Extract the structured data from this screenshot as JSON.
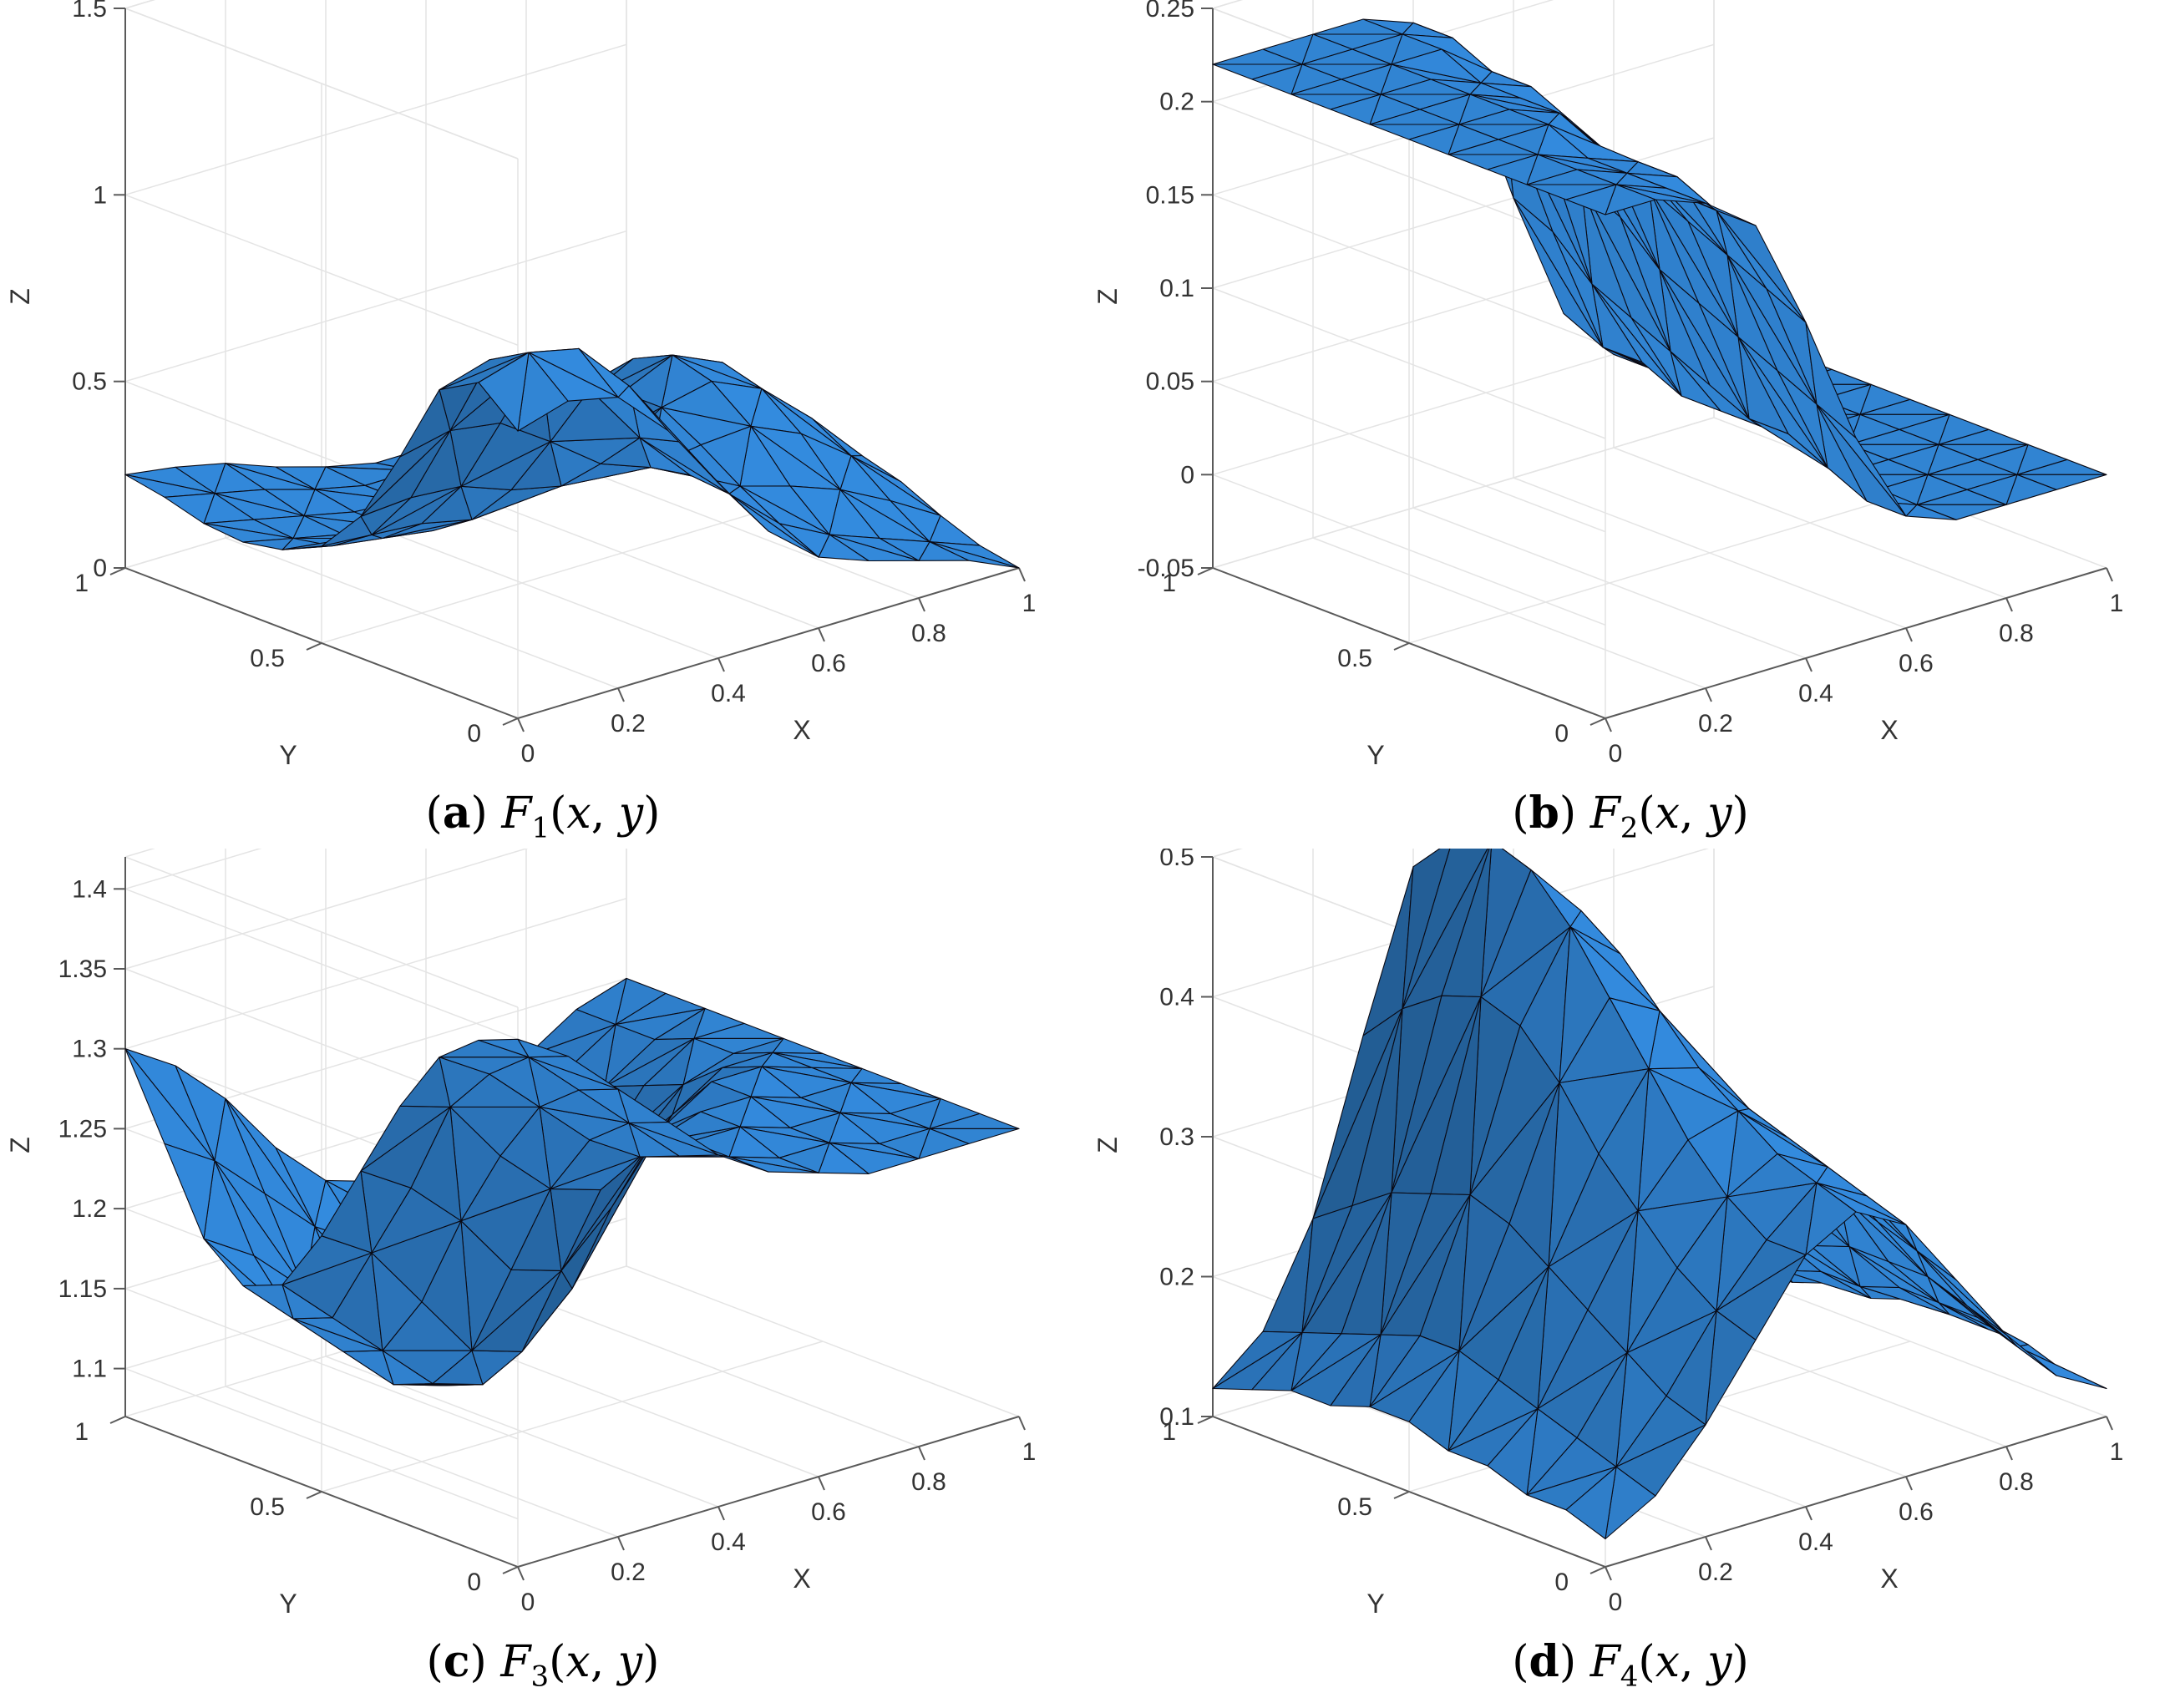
{
  "chart_data": [
    {
      "type": "surface",
      "function": "F_1(x, y)",
      "caption_letter": "a",
      "caption_index": "1",
      "xlabel": "X",
      "ylabel": "Y",
      "zlabel": "Z",
      "xlim": [
        0,
        1
      ],
      "ylim": [
        0,
        1
      ],
      "zlim": [
        0,
        1.5
      ],
      "xticks": [
        "0",
        "0.2",
        "0.4",
        "0.6",
        "0.8",
        "1"
      ],
      "yticks": [
        "0",
        "0.5",
        "1"
      ],
      "zticks": [
        "0",
        "0.5",
        "1",
        "1.5"
      ],
      "zticks_values": [
        0,
        0.5,
        1,
        1.5
      ],
      "x": [
        0,
        0.1,
        0.2,
        0.3,
        0.4,
        0.5,
        0.6,
        0.7,
        0.8,
        0.9,
        1
      ],
      "y": [
        0,
        0.1,
        0.2,
        0.3,
        0.4,
        0.5,
        0.6,
        0.7,
        0.8,
        0.9,
        1
      ],
      "z": [
        [
          0.77,
          0.81,
          0.78,
          0.65,
          0.47,
          0.3,
          0.19,
          0.14,
          0.1,
          0.06,
          0.0
        ],
        [
          0.86,
          0.9,
          0.87,
          0.73,
          0.54,
          0.36,
          0.24,
          0.17,
          0.12,
          0.07,
          0.02
        ],
        [
          0.8,
          0.84,
          0.81,
          0.68,
          0.51,
          0.37,
          0.3,
          0.26,
          0.21,
          0.14,
          0.06
        ],
        [
          0.58,
          0.61,
          0.59,
          0.5,
          0.4,
          0.35,
          0.37,
          0.38,
          0.32,
          0.22,
          0.11
        ],
        [
          0.38,
          0.39,
          0.38,
          0.33,
          0.3,
          0.34,
          0.43,
          0.46,
          0.4,
          0.28,
          0.14
        ],
        [
          0.26,
          0.25,
          0.24,
          0.21,
          0.22,
          0.3,
          0.43,
          0.49,
          0.43,
          0.3,
          0.15
        ],
        [
          0.21,
          0.18,
          0.16,
          0.14,
          0.16,
          0.24,
          0.37,
          0.44,
          0.4,
          0.28,
          0.14
        ],
        [
          0.19,
          0.16,
          0.13,
          0.11,
          0.12,
          0.18,
          0.28,
          0.34,
          0.32,
          0.23,
          0.12
        ],
        [
          0.2,
          0.17,
          0.14,
          0.11,
          0.1,
          0.13,
          0.19,
          0.23,
          0.22,
          0.16,
          0.09
        ],
        [
          0.23,
          0.2,
          0.17,
          0.13,
          0.1,
          0.1,
          0.12,
          0.14,
          0.13,
          0.1,
          0.06
        ],
        [
          0.25,
          0.23,
          0.2,
          0.15,
          0.11,
          0.08,
          0.08,
          0.08,
          0.07,
          0.06,
          0.04
        ]
      ]
    },
    {
      "type": "surface",
      "function": "F_2(x, y)",
      "caption_letter": "b",
      "caption_index": "2",
      "xlabel": "X",
      "ylabel": "Y",
      "zlabel": "Z",
      "xlim": [
        0,
        1
      ],
      "ylim": [
        0,
        1
      ],
      "zlim": [
        -0.05,
        0.25
      ],
      "xticks": [
        "0",
        "0.2",
        "0.4",
        "0.6",
        "0.8",
        "1"
      ],
      "yticks": [
        "0",
        "0.5",
        "1"
      ],
      "zticks": [
        "-0.05",
        "0",
        "0.05",
        "0.1",
        "0.15",
        "0.2",
        "0.25"
      ],
      "zticks_values": [
        -0.05,
        0,
        0.05,
        0.1,
        0.15,
        0.2,
        0.25
      ],
      "x": [
        0,
        0.1,
        0.2,
        0.3,
        0.4,
        0.5,
        0.6,
        0.7,
        0.8,
        0.9,
        1
      ],
      "y": [
        0,
        0.1,
        0.2,
        0.3,
        0.4,
        0.5,
        0.6,
        0.7,
        0.8,
        0.9,
        1
      ],
      "z": [
        [
          0.22,
          0.22,
          0.21,
          0.19,
          0.13,
          0.06,
          0.01,
          0.0,
          0.0,
          0.0,
          0.0
        ],
        [
          0.22,
          0.22,
          0.21,
          0.19,
          0.14,
          0.07,
          0.01,
          0.0,
          0.0,
          0.0,
          0.0
        ],
        [
          0.22,
          0.22,
          0.21,
          0.2,
          0.15,
          0.08,
          0.02,
          0.0,
          0.0,
          0.0,
          0.0
        ],
        [
          0.22,
          0.22,
          0.21,
          0.2,
          0.16,
          0.09,
          0.03,
          0.0,
          0.0,
          0.0,
          0.0
        ],
        [
          0.22,
          0.22,
          0.22,
          0.2,
          0.17,
          0.1,
          0.03,
          0.01,
          0.0,
          0.0,
          0.0
        ],
        [
          0.22,
          0.22,
          0.22,
          0.21,
          0.18,
          0.11,
          0.04,
          0.01,
          0.0,
          0.0,
          0.0
        ],
        [
          0.22,
          0.22,
          0.22,
          0.21,
          0.19,
          0.13,
          0.05,
          0.01,
          0.0,
          0.0,
          0.0
        ],
        [
          0.22,
          0.22,
          0.22,
          0.21,
          0.2,
          0.14,
          0.06,
          0.01,
          0.0,
          0.0,
          0.0
        ],
        [
          0.22,
          0.22,
          0.22,
          0.22,
          0.2,
          0.16,
          0.07,
          0.02,
          0.0,
          0.0,
          0.0
        ],
        [
          0.22,
          0.22,
          0.22,
          0.22,
          0.21,
          0.17,
          0.09,
          0.02,
          0.0,
          0.0,
          0.0
        ],
        [
          0.22,
          0.22,
          0.22,
          0.22,
          0.21,
          0.18,
          0.1,
          0.03,
          0.0,
          0.0,
          0.0
        ]
      ]
    },
    {
      "type": "surface",
      "function": "F_3(x, y)",
      "caption_letter": "c",
      "caption_index": "3",
      "xlabel": "X",
      "ylabel": "Y",
      "zlabel": "Z",
      "xlim": [
        0,
        1
      ],
      "ylim": [
        0,
        1
      ],
      "zlim": [
        1.07,
        1.42
      ],
      "xticks": [
        "0",
        "0.2",
        "0.4",
        "0.6",
        "0.8",
        "1"
      ],
      "yticks": [
        "0",
        "0.5",
        "1"
      ],
      "zticks": [
        "1.1",
        "1.15",
        "1.2",
        "1.25",
        "1.3",
        "1.35",
        "1.4"
      ],
      "zticks_values": [
        1.1,
        1.15,
        1.2,
        1.25,
        1.3,
        1.35,
        1.4
      ],
      "x": [
        0,
        0.1,
        0.2,
        0.3,
        0.4,
        0.5,
        0.6,
        0.7,
        0.8,
        0.9,
        1
      ],
      "y": [
        0,
        0.1,
        0.2,
        0.3,
        0.4,
        0.5,
        0.6,
        0.7,
        0.8,
        0.9,
        1
      ],
      "z": [
        [
          1.4,
          1.38,
          1.35,
          1.32,
          1.29,
          1.27,
          1.26,
          1.25,
          1.25,
          1.25,
          1.25
        ],
        [
          1.39,
          1.37,
          1.34,
          1.31,
          1.28,
          1.27,
          1.26,
          1.26,
          1.25,
          1.25,
          1.25
        ],
        [
          1.37,
          1.35,
          1.32,
          1.29,
          1.27,
          1.27,
          1.27,
          1.26,
          1.26,
          1.25,
          1.25
        ],
        [
          1.33,
          1.32,
          1.28,
          1.25,
          1.24,
          1.26,
          1.27,
          1.27,
          1.26,
          1.26,
          1.25
        ],
        [
          1.28,
          1.26,
          1.23,
          1.19,
          1.18,
          1.21,
          1.25,
          1.27,
          1.27,
          1.26,
          1.25
        ],
        [
          1.23,
          1.21,
          1.17,
          1.13,
          1.12,
          1.15,
          1.2,
          1.24,
          1.26,
          1.26,
          1.25
        ],
        [
          1.19,
          1.16,
          1.13,
          1.1,
          1.09,
          1.11,
          1.16,
          1.21,
          1.24,
          1.25,
          1.25
        ],
        [
          1.18,
          1.15,
          1.12,
          1.09,
          1.08,
          1.1,
          1.14,
          1.19,
          1.23,
          1.25,
          1.25
        ],
        [
          1.2,
          1.18,
          1.15,
          1.12,
          1.11,
          1.12,
          1.15,
          1.19,
          1.22,
          1.24,
          1.25
        ],
        [
          1.25,
          1.23,
          1.2,
          1.17,
          1.15,
          1.15,
          1.17,
          1.19,
          1.22,
          1.24,
          1.25
        ],
        [
          1.3,
          1.28,
          1.25,
          1.21,
          1.18,
          1.17,
          1.18,
          1.2,
          1.22,
          1.24,
          1.25
        ]
      ]
    },
    {
      "type": "surface",
      "function": "F_4(x, y)",
      "caption_letter": "d",
      "caption_index": "4",
      "xlabel": "X",
      "ylabel": "Y",
      "zlabel": "Z",
      "xlim": [
        0,
        1
      ],
      "ylim": [
        0,
        1
      ],
      "zlim": [
        0.1,
        0.5
      ],
      "xticks": [
        "0",
        "0.2",
        "0.4",
        "0.6",
        "0.8",
        "1"
      ],
      "yticks": [
        "0",
        "0.5",
        "1"
      ],
      "zticks": [
        "0.1",
        "0.2",
        "0.3",
        "0.4",
        "0.5"
      ],
      "zticks_values": [
        0.1,
        0.2,
        0.3,
        0.4,
        0.5
      ],
      "x": [
        0,
        0.1,
        0.2,
        0.3,
        0.4,
        0.5,
        0.6,
        0.7,
        0.8,
        0.9,
        1
      ],
      "y": [
        0,
        0.1,
        0.2,
        0.3,
        0.4,
        0.5,
        0.6,
        0.7,
        0.8,
        0.9,
        1
      ],
      "z": [
        [
          0.12,
          0.14,
          0.18,
          0.23,
          0.28,
          0.3,
          0.28,
          0.23,
          0.18,
          0.14,
          0.12
        ],
        [
          0.13,
          0.15,
          0.19,
          0.24,
          0.28,
          0.31,
          0.29,
          0.24,
          0.19,
          0.15,
          0.12
        ],
        [
          0.13,
          0.16,
          0.21,
          0.26,
          0.3,
          0.32,
          0.3,
          0.25,
          0.2,
          0.16,
          0.13
        ],
        [
          0.14,
          0.17,
          0.23,
          0.29,
          0.33,
          0.34,
          0.31,
          0.26,
          0.2,
          0.16,
          0.13
        ],
        [
          0.14,
          0.18,
          0.25,
          0.32,
          0.37,
          0.36,
          0.32,
          0.26,
          0.2,
          0.16,
          0.13
        ],
        [
          0.15,
          0.19,
          0.27,
          0.36,
          0.41,
          0.39,
          0.32,
          0.25,
          0.19,
          0.15,
          0.13
        ],
        [
          0.15,
          0.19,
          0.28,
          0.39,
          0.45,
          0.42,
          0.33,
          0.25,
          0.19,
          0.15,
          0.12
        ],
        [
          0.14,
          0.18,
          0.27,
          0.4,
          0.48,
          0.44,
          0.33,
          0.24,
          0.18,
          0.14,
          0.12
        ],
        [
          0.14,
          0.17,
          0.26,
          0.39,
          0.49,
          0.45,
          0.33,
          0.24,
          0.17,
          0.14,
          0.11
        ],
        [
          0.13,
          0.16,
          0.24,
          0.37,
          0.48,
          0.44,
          0.32,
          0.23,
          0.17,
          0.13,
          0.11
        ],
        [
          0.12,
          0.15,
          0.22,
          0.34,
          0.45,
          0.41,
          0.3,
          0.22,
          0.16,
          0.12,
          0.1
        ]
      ]
    }
  ],
  "colors": {
    "surface": "#2f7fcb",
    "mesh": "#0a0a14",
    "grid": "#e4e4e4",
    "axis": "#5a5a5a",
    "text": "#333333"
  }
}
